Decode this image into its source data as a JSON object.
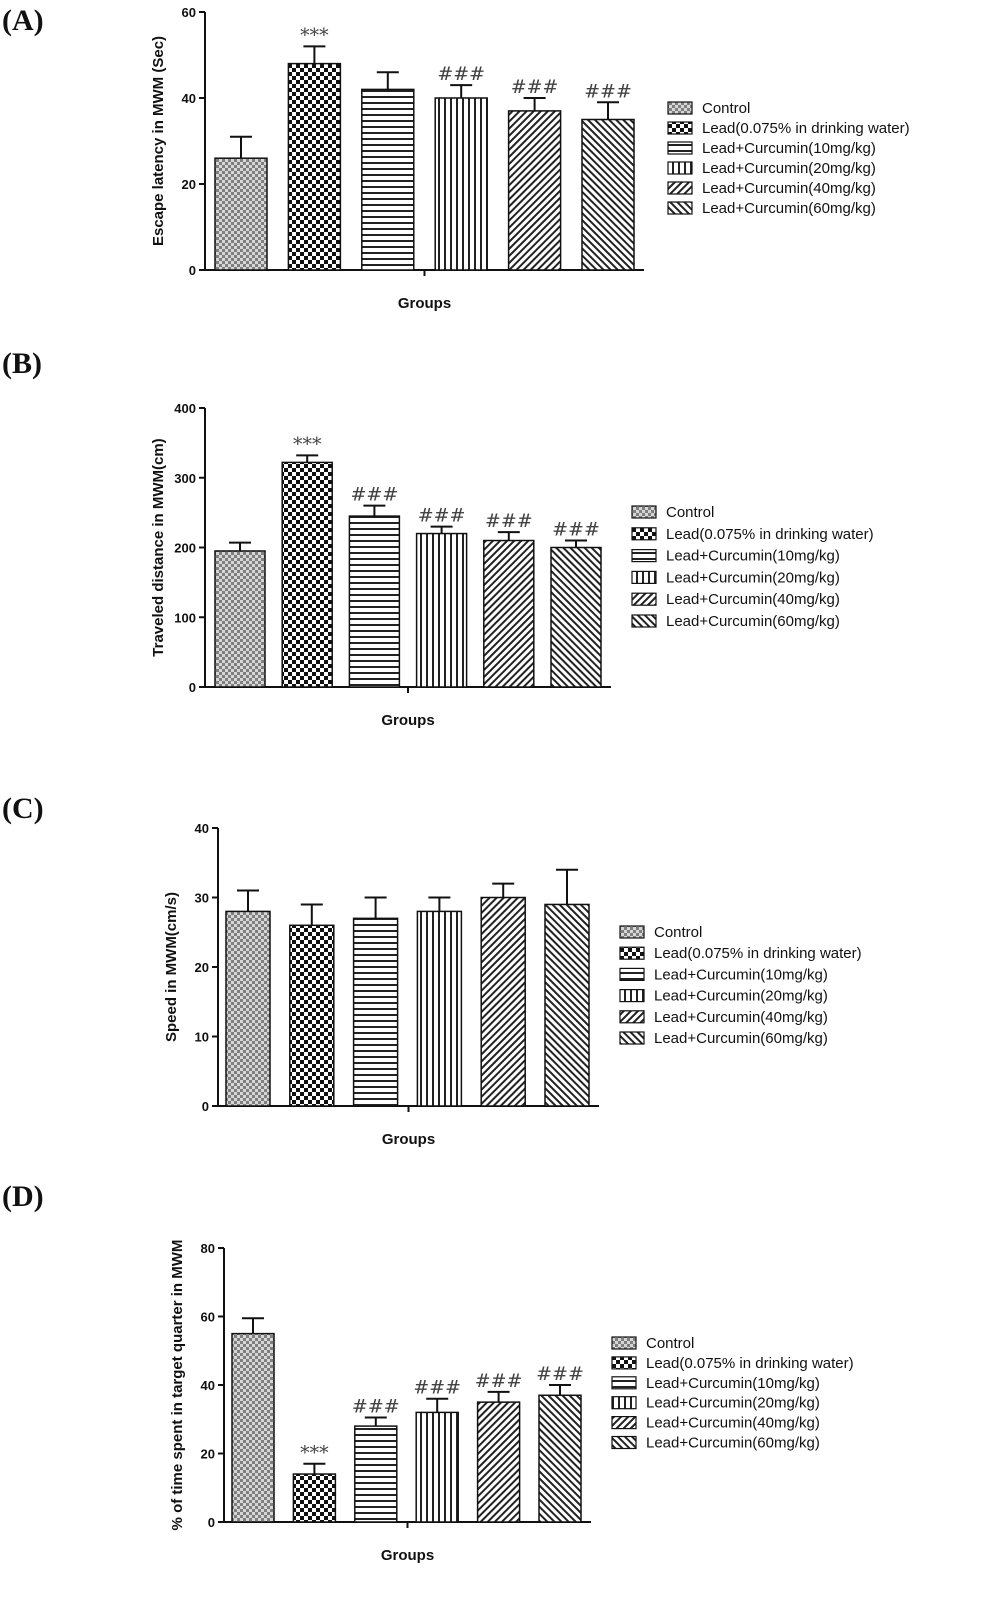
{
  "legend_entries": [
    "Control",
    "Lead(0.075% in drinking water)",
    "Lead+Curcumin(10mg/kg)",
    "Lead+Curcumin(20mg/kg)",
    "Lead+Curcumin(40mg/kg)",
    "Lead+Curcumin(60mg/kg)"
  ],
  "chart_data": [
    {
      "type": "bar",
      "panel": "(A)",
      "xlabel": "Groups",
      "ylabel": "Escape latency in MWM (Sec)",
      "ylim": [
        0,
        60
      ],
      "yticks": [
        0,
        20,
        40,
        60
      ],
      "values": [
        26,
        48,
        42,
        40,
        37,
        35
      ],
      "errors": [
        5,
        4,
        4,
        3,
        3,
        4
      ],
      "annotations": [
        "",
        "***",
        "",
        "###",
        "###",
        "###"
      ],
      "legend_position": "right"
    },
    {
      "type": "bar",
      "panel": "(B)",
      "xlabel": "Groups",
      "ylabel": "Traveled distance in MWM(cm)",
      "ylim": [
        0,
        400
      ],
      "yticks": [
        0,
        100,
        200,
        300,
        400
      ],
      "values": [
        195,
        322,
        245,
        220,
        210,
        200
      ],
      "errors": [
        12,
        10,
        15,
        10,
        12,
        10
      ],
      "annotations": [
        "",
        "***",
        "###",
        "###",
        "###",
        "###"
      ],
      "legend_position": "right"
    },
    {
      "type": "bar",
      "panel": "(C)",
      "xlabel": "Groups",
      "ylabel": "Speed in MWM(cm/s)",
      "ylim": [
        0,
        40
      ],
      "yticks": [
        0,
        10,
        20,
        30,
        40
      ],
      "values": [
        28,
        26,
        27,
        28,
        30,
        29
      ],
      "errors": [
        3,
        3,
        3,
        2,
        2,
        5
      ],
      "annotations": [
        "",
        "",
        "",
        "",
        "",
        ""
      ],
      "legend_position": "right"
    },
    {
      "type": "bar",
      "panel": "(D)",
      "xlabel": "Groups",
      "ylabel": "% of time spent in target quarter in MWM",
      "ylim": [
        0,
        80
      ],
      "yticks": [
        0,
        20,
        40,
        60,
        80
      ],
      "values": [
        55,
        14,
        28,
        32,
        35,
        37
      ],
      "errors": [
        4.5,
        3,
        2.5,
        4,
        3,
        3
      ],
      "annotations": [
        "",
        "***",
        "###",
        "###",
        "###",
        "###"
      ],
      "legend_position": "right"
    }
  ]
}
